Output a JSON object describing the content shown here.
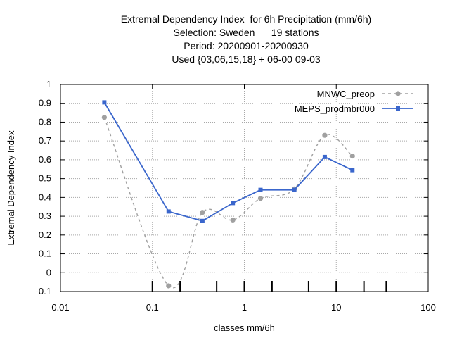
{
  "chart_data": {
    "type": "line",
    "title_lines": [
      "Extremal Dependency Index  for 6h Precipitation (mm/6h)",
      "Selection: Sweden      19 stations",
      "Period: 20200901-20200930",
      "Used {03,06,15,18} + 06-00 09-03"
    ],
    "xlabel": "classes mm/6h",
    "ylabel": "Extremal Dependency Index",
    "xscale": "log",
    "xlim": [
      0.01,
      100
    ],
    "ylim": [
      -0.1,
      1
    ],
    "x_tick_labels": [
      "0.01",
      "0.1",
      "1",
      "10",
      "100"
    ],
    "y_tick_labels": [
      "-0.1",
      "0",
      "0.1",
      "0.2",
      "0.3",
      "0.4",
      "0.5",
      "0.6",
      "0.7",
      "0.8",
      "0.9",
      "1"
    ],
    "grid": true,
    "legend_position": "top-right",
    "class_thresholds": [
      0.1,
      0.2,
      0.5,
      1,
      2,
      5,
      10,
      20,
      35
    ],
    "series": [
      {
        "name": "MNWC_preop",
        "color": "#a0a0a0",
        "style": "dashed",
        "x": [
          0.03,
          0.15,
          0.35,
          0.75,
          1.5,
          3.5,
          7.5,
          15
        ],
        "y": [
          0.825,
          -0.07,
          0.32,
          0.28,
          0.395,
          0.445,
          0.73,
          0.62
        ]
      },
      {
        "name": "MEPS_prodmbr000",
        "color": "#3a66cc",
        "style": "solid",
        "x": [
          0.03,
          0.15,
          0.35,
          0.75,
          1.5,
          3.5,
          7.5,
          15
        ],
        "y": [
          0.905,
          0.325,
          0.275,
          0.37,
          0.44,
          0.44,
          0.615,
          0.545
        ]
      }
    ]
  }
}
